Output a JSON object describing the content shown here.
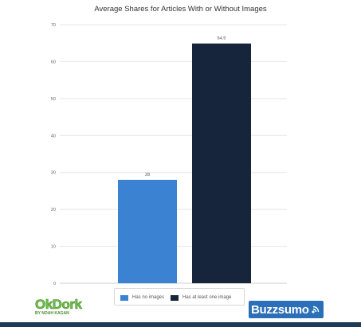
{
  "chart_data": {
    "type": "bar",
    "title": "Average Shares for Articles With or Without Images",
    "categories": [
      "Has no images",
      "Has at least one image"
    ],
    "values": [
      28,
      64.9
    ],
    "value_labels": [
      "28",
      "64.9"
    ],
    "colors": [
      "#3b83d2",
      "#16253b"
    ],
    "ylim": [
      0,
      70
    ],
    "yticks": [
      0,
      10,
      20,
      30,
      40,
      50,
      60,
      70
    ],
    "grid": true,
    "legend_position": "bottom-center",
    "xlabel": "",
    "ylabel": ""
  },
  "logos": {
    "okdork_main": "OkDork",
    "okdork_sub": "BY NOAH KAGAN",
    "buzzsumo": "Buzzsumo"
  },
  "legend": {
    "item1_label": "Has no images",
    "item2_label": "Has at least one image"
  }
}
